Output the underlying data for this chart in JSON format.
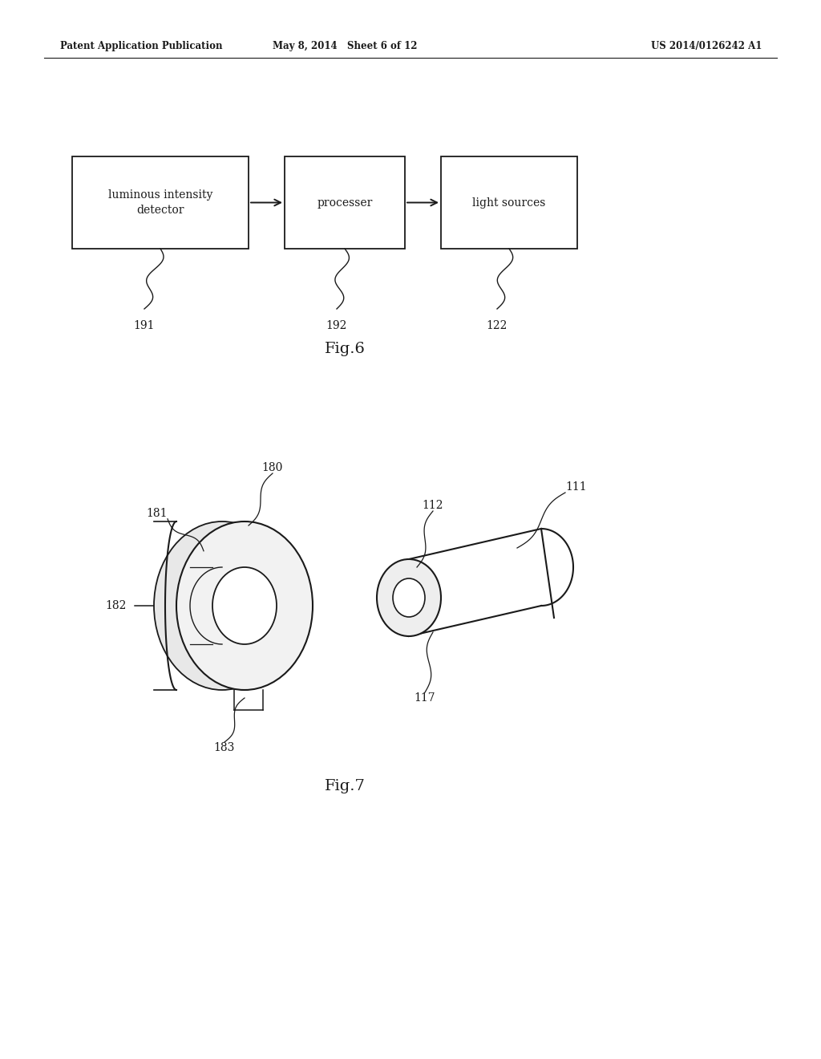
{
  "header_left": "Patent Application Publication",
  "header_mid": "May 8, 2014   Sheet 6 of 12",
  "header_right": "US 2014/0126242 A1",
  "fig6_title": "Fig.6",
  "fig7_title": "Fig.7",
  "box1_label": "luminous intensity\ndetector",
  "box2_label": "processer",
  "box3_label": "light sources",
  "ref1": "191",
  "ref2": "192",
  "ref3": "122",
  "bg_color": "#ffffff",
  "line_color": "#1a1a1a",
  "text_color": "#1a1a1a"
}
